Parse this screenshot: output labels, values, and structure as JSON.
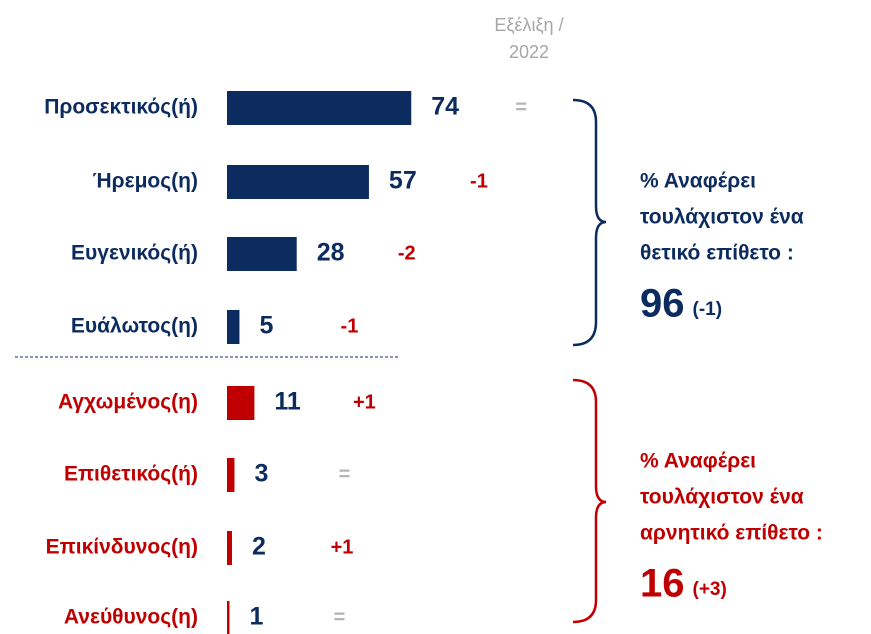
{
  "chart_data": {
    "type": "bar",
    "column_header": [
      "Εξέλιξη /",
      "2022"
    ],
    "categories": [
      "Προσεκτικός(ή)",
      "Ήρεμος(η)",
      "Ευγενικός(ή)",
      "Ευάλωτος(η)",
      "Αγχωμένος(η)",
      "Επιθετικός(ή)",
      "Επικίνδυνος(η)",
      "Ανεύθυνος(η)"
    ],
    "values": [
      74,
      57,
      28,
      5,
      11,
      3,
      2,
      1
    ],
    "colors": [
      "#0c2b5e",
      "#0c2b5e",
      "#0c2b5e",
      "#0c2b5e",
      "#c00000",
      "#c00000",
      "#c00000",
      "#c00000"
    ],
    "changes": [
      "=",
      "-1",
      "-2",
      "-1",
      "+1",
      "=",
      "+1",
      "="
    ],
    "change_colors": [
      "#b5b5b5",
      "#c00000",
      "#c00000",
      "#c00000",
      "#c00000",
      "#b5b5b5",
      "#c00000",
      "#b5b5b5"
    ],
    "xlim": [
      0,
      100
    ],
    "groups": [
      {
        "lines": [
          "% Αναφέρει",
          "τουλάχιστον ένα",
          "θετικό επίθετο :"
        ],
        "total": 96,
        "change": "(-1)",
        "color": "#0c2b5e"
      },
      {
        "lines": [
          "% Αναφέρει",
          "τουλάχιστον ένα",
          "αρνητικό επίθετο :"
        ],
        "total": 16,
        "change": "(+3)",
        "color": "#c00000"
      }
    ]
  }
}
